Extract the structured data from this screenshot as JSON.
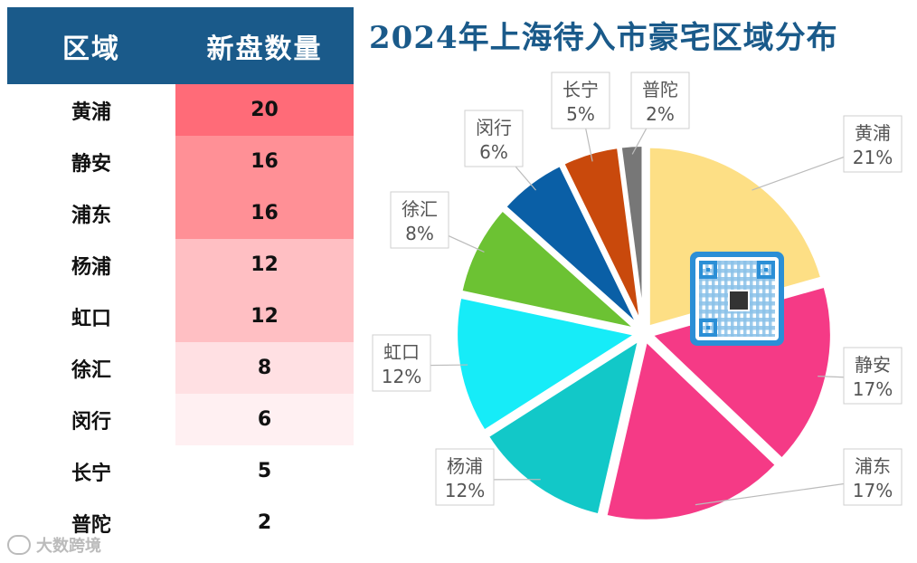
{
  "chart_data": {
    "type": "pie",
    "title": "2024年上海待入市豪宅区域分布",
    "table": {
      "headers": [
        "区域",
        "新盘数量"
      ],
      "rows": [
        {
          "district": "黄浦",
          "count": "20",
          "color": "#ff6b78"
        },
        {
          "district": "静安",
          "count": "16",
          "color": "#ff9096"
        },
        {
          "district": "浦东",
          "count": "16",
          "color": "#ff9096"
        },
        {
          "district": "杨浦",
          "count": "12",
          "color": "#ffbfc3"
        },
        {
          "district": "虹口",
          "count": "12",
          "color": "#ffbfc3"
        },
        {
          "district": "徐汇",
          "count": "8",
          "color": "#ffe0e3"
        },
        {
          "district": "闵行",
          "count": "6",
          "color": "#fff0f2"
        },
        {
          "district": "长宁",
          "count": "5",
          "color": "#ffffff"
        },
        {
          "district": "普陀",
          "count": "2",
          "color": "#ffffff"
        }
      ]
    },
    "slices": [
      {
        "name": "黄浦",
        "label": "21%",
        "value": 20,
        "color": "#fddf85"
      },
      {
        "name": "静安",
        "label": "17%",
        "value": 16,
        "color": "#f53a86"
      },
      {
        "name": "浦东",
        "label": "17%",
        "value": 16,
        "color": "#f53a86"
      },
      {
        "name": "杨浦",
        "label": "12%",
        "value": 12,
        "color": "#12c8c8"
      },
      {
        "name": "虹口",
        "label": "12%",
        "value": 12,
        "color": "#16ecf8"
      },
      {
        "name": "徐汇",
        "label": "8%",
        "value": 8,
        "color": "#6cc233"
      },
      {
        "name": "闵行",
        "label": "6%",
        "value": 6,
        "color": "#0a5fa6"
      },
      {
        "name": "长宁",
        "label": "5%",
        "value": 5,
        "color": "#c9490c"
      },
      {
        "name": "普陀",
        "label": "2%",
        "value": 2,
        "color": "#777777"
      }
    ],
    "legend": "labels next to slices"
  },
  "branding": {
    "logo_text": "大数跨境",
    "qr_icon": "qr-code-icon"
  }
}
